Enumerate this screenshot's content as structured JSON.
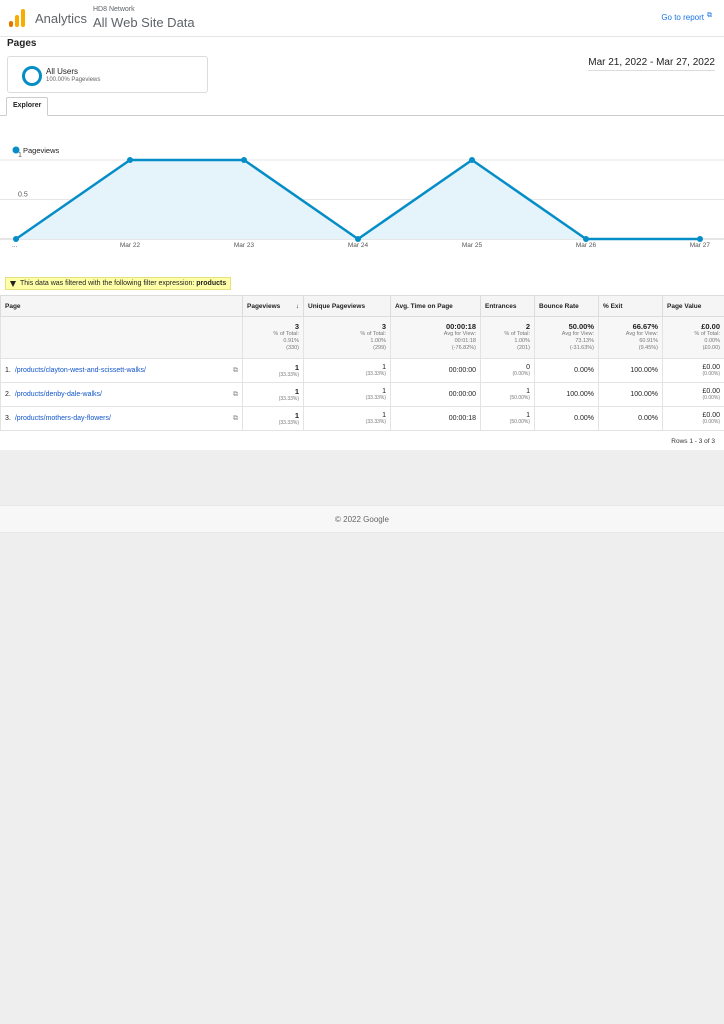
{
  "header": {
    "app_name": "Analytics",
    "account": "HD8 Network",
    "property": "All Web Site Data",
    "goto_report": "Go to report"
  },
  "page_title": "Pages",
  "segment": {
    "name": "All Users",
    "subtitle": "100.00% Pageviews"
  },
  "date_range": "Mar 21, 2022 - Mar 27, 2022",
  "tab": "Explorer",
  "chart_data": {
    "type": "area",
    "series": [
      {
        "name": "Pageviews",
        "values": [
          0,
          1,
          1,
          0,
          1,
          0,
          0
        ]
      }
    ],
    "categories": [
      "...",
      "Mar 22",
      "Mar 23",
      "Mar 24",
      "Mar 25",
      "Mar 26",
      "Mar 27"
    ],
    "yticks": [
      "1",
      "0.5"
    ],
    "ylim": [
      0,
      1
    ],
    "grid": true,
    "legend": "top-left",
    "color": "#058dc7",
    "fill": "#e5f3fb"
  },
  "filter": {
    "text": "This data was filtered with the following filter expression:",
    "expression": "products"
  },
  "table": {
    "columns": {
      "page": "Page",
      "pageviews": "Pageviews",
      "unique": "Unique Pageviews",
      "avgtime": "Avg. Time on Page",
      "entrances": "Entrances",
      "bounce": "Bounce Rate",
      "exit": "% Exit",
      "value": "Page Value"
    },
    "totals": {
      "pageviews": {
        "v": "3",
        "l1": "% of Total:",
        "l2": "0.91%",
        "l3": "(330)"
      },
      "unique": {
        "v": "3",
        "l1": "% of Total:",
        "l2": "1.00%",
        "l3": "(299)"
      },
      "avgtime": {
        "v": "00:00:18",
        "l1": "Avg for View:",
        "l2": "00:01:18",
        "l3": "(-76.82%)"
      },
      "entrances": {
        "v": "2",
        "l1": "% of Total:",
        "l2": "1.00%",
        "l3": "(201)"
      },
      "bounce": {
        "v": "50.00%",
        "l1": "Avg for View:",
        "l2": "73.13%",
        "l3": "(-31.63%)"
      },
      "exit": {
        "v": "66.67%",
        "l1": "Avg for View:",
        "l2": "60.91%",
        "l3": "(9.45%)"
      },
      "value": {
        "v": "£0.00",
        "l1": "% of Total:",
        "l2": "0.00%",
        "l3": "(£0.00)"
      }
    },
    "rows": [
      {
        "n": "1.",
        "page": "/products/clayton-west-and-scissett-walks/",
        "pageviews": "1",
        "pageviews_pct": "(33.33%)",
        "unique": "1",
        "unique_pct": "(33.33%)",
        "avgtime": "00:00:00",
        "entrances": "0",
        "entrances_pct": "(0.00%)",
        "bounce": "0.00%",
        "exit": "100.00%",
        "value": "£0.00",
        "value_pct": "(0.00%)"
      },
      {
        "n": "2.",
        "page": "/products/denby-dale-walks/",
        "pageviews": "1",
        "pageviews_pct": "(33.33%)",
        "unique": "1",
        "unique_pct": "(33.33%)",
        "avgtime": "00:00:00",
        "entrances": "1",
        "entrances_pct": "(50.00%)",
        "bounce": "100.00%",
        "exit": "100.00%",
        "value": "£0.00",
        "value_pct": "(0.00%)"
      },
      {
        "n": "3.",
        "page": "/products/mothers-day-flowers/",
        "pageviews": "1",
        "pageviews_pct": "(33.33%)",
        "unique": "1",
        "unique_pct": "(33.33%)",
        "avgtime": "00:00:18",
        "entrances": "1",
        "entrances_pct": "(50.00%)",
        "bounce": "0.00%",
        "exit": "0.00%",
        "value": "£0.00",
        "value_pct": "(0.00%)"
      }
    ],
    "rows_info": "Rows 1 - 3 of 3"
  },
  "footer": {
    "copyright": "© 2022 Google"
  }
}
